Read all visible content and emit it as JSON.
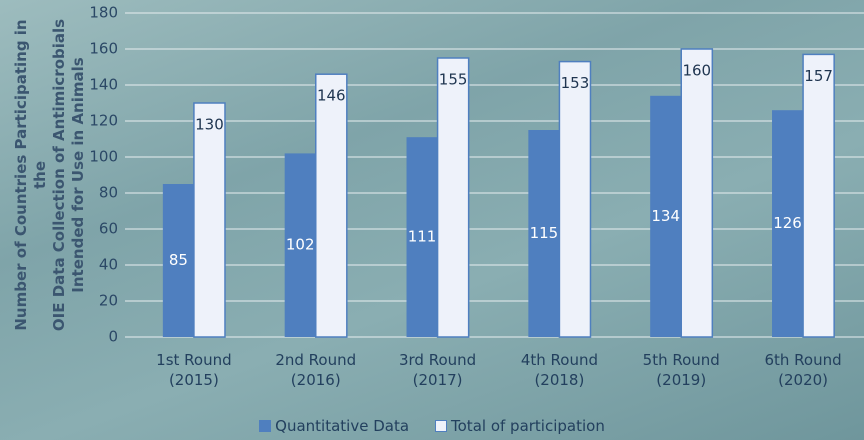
{
  "chart_data": {
    "type": "bar",
    "y_label": "Number of Countries Participating in the\nOIE Data Collection of Antimicrobials\nIntended for Use in Animals",
    "categories": [
      "1st Round\n(2015)",
      "2nd Round\n(2016)",
      "3rd Round\n(2017)",
      "4th Round\n(2018)",
      "5th Round\n(2019)",
      "6th Round\n(2020)"
    ],
    "series": [
      {
        "name": "Quantitative Data",
        "color": "#4f7fbf",
        "values": [
          85,
          102,
          111,
          115,
          134,
          126
        ]
      },
      {
        "name": "Total of participation",
        "color": "#eef2fa",
        "values": [
          130,
          146,
          155,
          153,
          160,
          157
        ]
      }
    ],
    "ylim": [
      0,
      180
    ],
    "yticks": [
      0,
      20,
      40,
      60,
      80,
      100,
      120,
      140,
      160,
      180
    ],
    "grid": true,
    "legend": "bottom"
  }
}
